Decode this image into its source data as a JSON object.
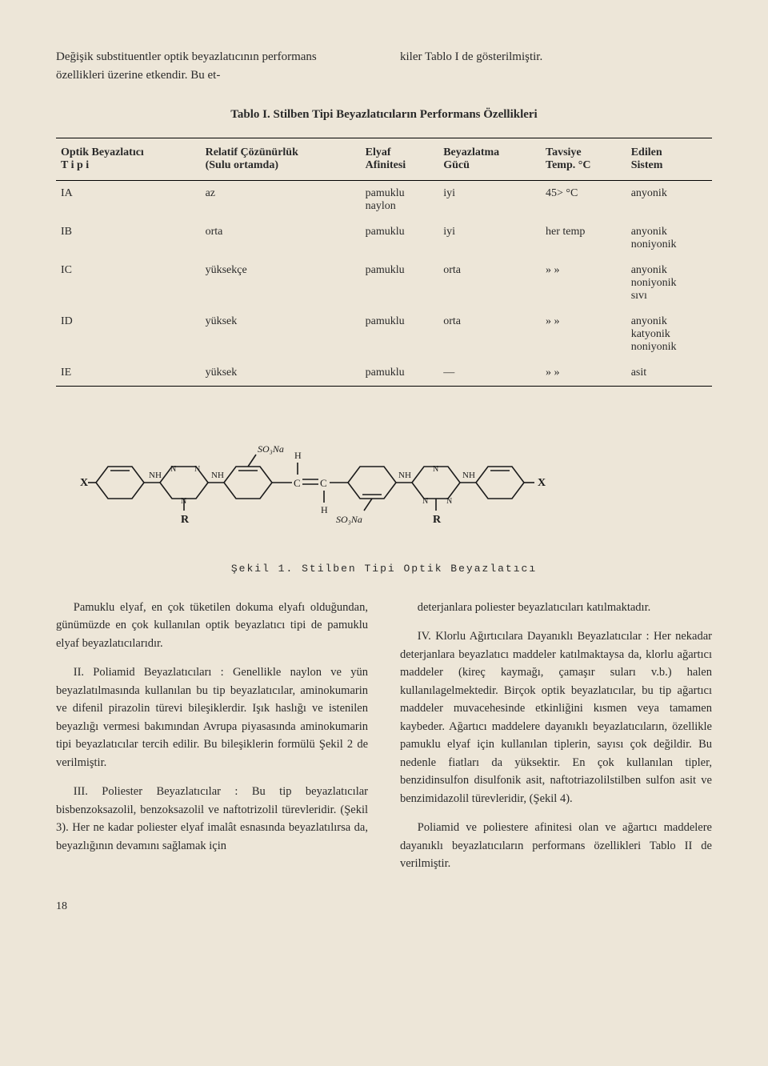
{
  "intro": {
    "left": "Değişik substituentler optik beyazlatıcının performans özellikleri üzerine etkendir. Bu et-",
    "right": "kiler Tablo I de gösterilmiştir."
  },
  "table": {
    "title": "Tablo I.  Stilben Tipi Beyazlatıcıların Performans Özellikleri",
    "headers": {
      "c1a": "Optik Beyazlatıcı",
      "c1b": "T i p i",
      "c2a": "Relatif Çözünürlük",
      "c2b": "(Sulu ortamda)",
      "c3a": "Elyaf",
      "c3b": "Afinitesi",
      "c4a": "Beyazlatma",
      "c4b": "Gücü",
      "c5a": "Tavsiye",
      "c5b": "Temp. °C",
      "c6a": "Edilen",
      "c6b": "Sistem"
    },
    "rows": [
      {
        "tip": "IA",
        "coz": "az",
        "elyaf": "pamuklu\nnaylon",
        "guc": "iyi",
        "temp": "45> °C",
        "sistem": "anyonik"
      },
      {
        "tip": "IB",
        "coz": "orta",
        "elyaf": "pamuklu",
        "guc": "iyi",
        "temp": "her temp",
        "sistem": "anyonik\nnoniyonik"
      },
      {
        "tip": "IC",
        "coz": "yüksekçe",
        "elyaf": "pamuklu",
        "guc": "orta",
        "temp": "»      »",
        "sistem": "anyonik\nnoniyonik\nsıvı"
      },
      {
        "tip": "ID",
        "coz": "yüksek",
        "elyaf": "pamuklu",
        "guc": "orta",
        "temp": "»      »",
        "sistem": "anyonik\nkatyonik\nnoniyonik"
      },
      {
        "tip": "IE",
        "coz": "yüksek",
        "elyaf": "pamuklu",
        "guc": "—",
        "temp": "»      »",
        "sistem": "asit"
      }
    ]
  },
  "figure": {
    "caption": "Şekil 1.  Stilben Tipi Optik Beyazlatıcı",
    "labels": {
      "x_left": "X",
      "x_right": "X",
      "r_left": "R",
      "r_right": "R",
      "so3na_top": "SO₃Na",
      "so3na_bot": "SO₃Na",
      "h_top": "H",
      "h_bot": "H",
      "nh": "NH",
      "n": "N",
      "c": "C"
    },
    "stroke": "#1a1a1a",
    "stroke_width": 1.6
  },
  "body": {
    "left": [
      "Pamuklu elyaf, en çok tüketilen dokuma elyafı olduğundan, günümüzde en çok kullanılan optik beyazlatıcı tipi de pamuklu elyaf beyazlatıcılarıdır.",
      "II. Poliamid Beyazlatıcıları : Genellikle naylon ve yün beyazlatılmasında kullanılan bu tip beyazlatıcılar, aminokumarin ve difenil pirazolin türevi bileşiklerdir. Işık haslığı ve istenilen beyazlığı vermesi bakımından Avrupa piyasasında aminokumarin tipi beyazlatıcılar tercih edilir. Bu bileşiklerin formülü Şekil 2 de verilmiştir.",
      "III. Poliester Beyazlatıcılar : Bu tip beyazlatıcılar bisbenzoksazolil, benzoksazolil ve naftotrizolil türevleridir. (Şekil 3). Her ne kadar poliester elyaf imalât esnasında beyazlatılırsa da, beyazlığının devamını sağlamak için"
    ],
    "right": [
      "deterjanlara poliester beyazlatıcıları katılmaktadır.",
      "IV. Klorlu Ağırtıcılara Dayanıklı Beyazlatıcılar : Her nekadar deterjanlara beyazlatıcı maddeler katılmaktaysa da, klorlu ağartıcı maddeler (kireç kaymağı, çamaşır suları v.b.) halen kullanılagelmektedir. Birçok optik beyazlatıcılar, bu tip ağartıcı maddeler muvacehesinde etkinliğini kısmen veya tamamen kaybeder. Ağartıcı maddelere dayanıklı beyazlatıcıların, özellikle pamuklu elyaf için kullanılan tiplerin, sayısı çok değildir. Bu nedenle fiatları da yüksektir. En çok kullanılan tipler, benzidinsulfon disulfonik asit, naftotriazolilstilben sulfon asit ve benzimidazolil türevleridir, (Şekil 4).",
      "Poliamid ve poliestere afinitesi olan ve ağartıcı maddelere dayanıklı beyazlatıcıların performans özellikleri Tablo II de verilmiştir."
    ]
  },
  "page_number": "18",
  "colors": {
    "bg": "#ede6d8",
    "text": "#2a2a2a",
    "rule": "#000000"
  }
}
